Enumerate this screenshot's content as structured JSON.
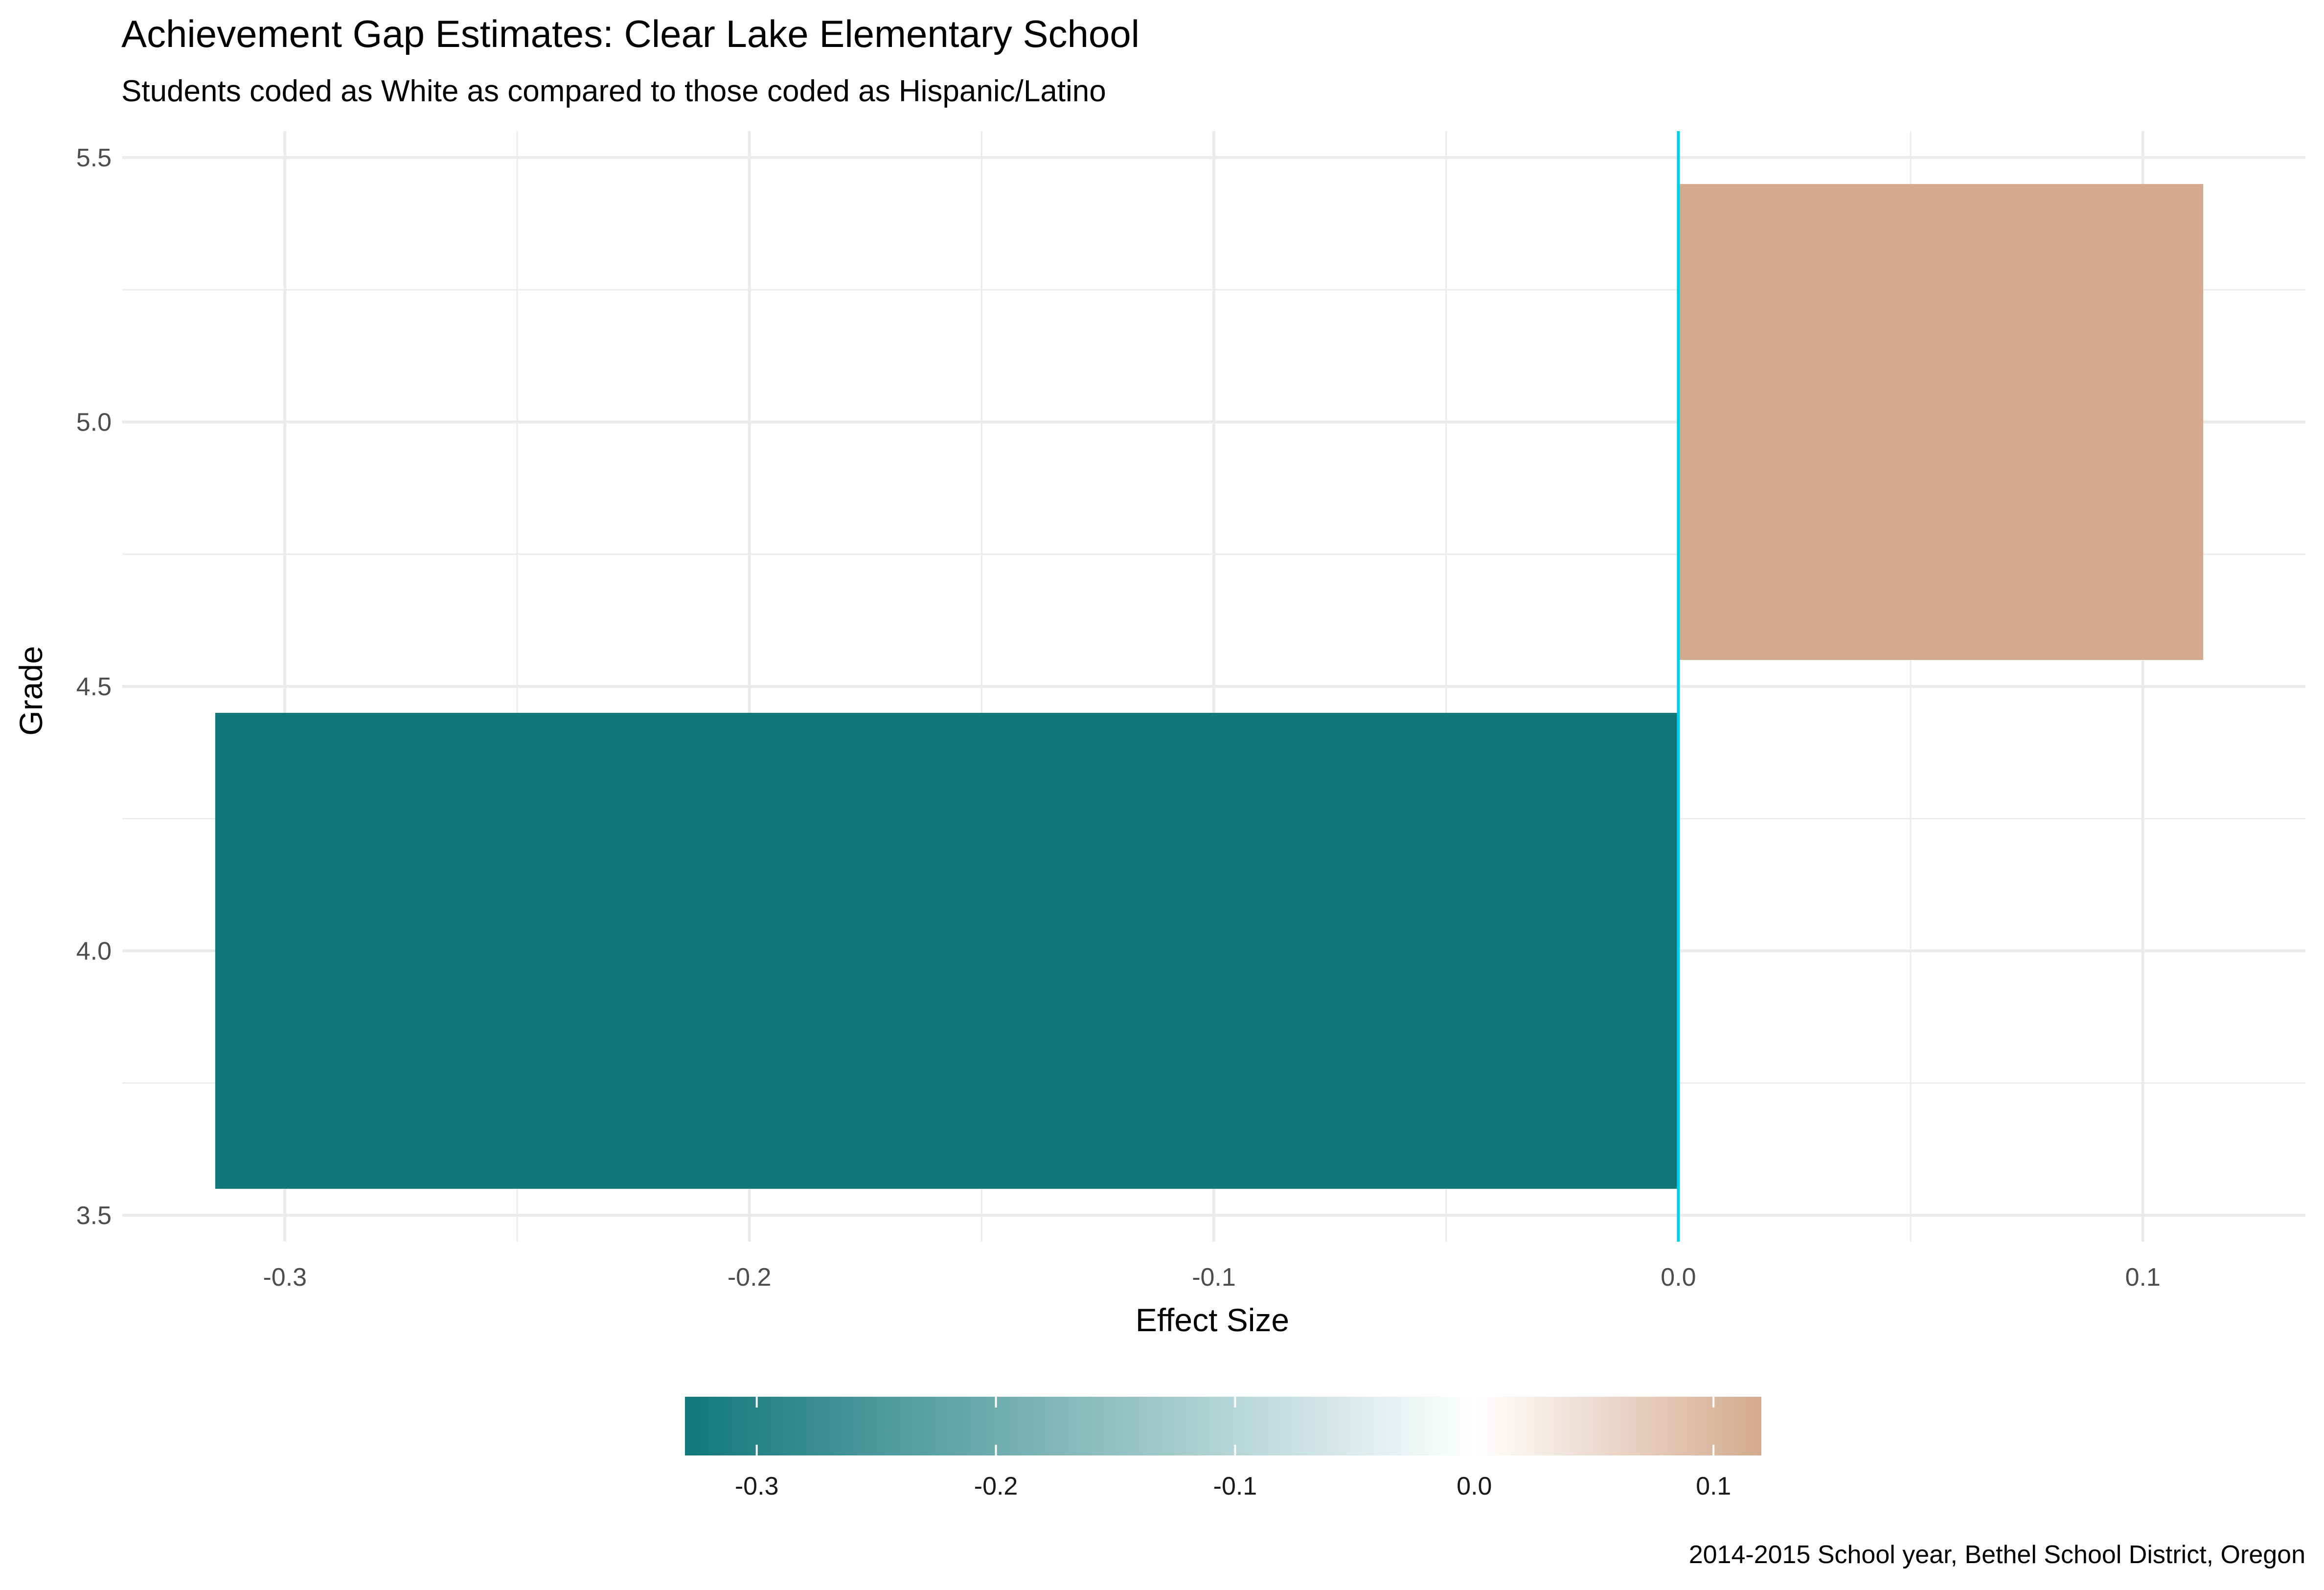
{
  "chart_data": {
    "type": "bar",
    "orientation": "horizontal",
    "title": "Achievement Gap Estimates: Clear Lake Elementary School",
    "subtitle": "Students coded as White as compared to those coded as Hispanic/Latino",
    "xlabel": "Effect Size",
    "ylabel": "Grade",
    "caption": "2014-2015 School year, Bethel School District, Oregon",
    "categories": [
      4,
      5
    ],
    "values": [
      -0.315,
      0.113
    ],
    "bar_colors": [
      "#11777a",
      "#d4aa8e"
    ],
    "xlim": [
      -0.335,
      0.135
    ],
    "ylim": [
      3.45,
      5.55
    ],
    "x_ticks": [
      -0.3,
      -0.2,
      -0.1,
      0.0,
      0.1
    ],
    "x_tick_labels": [
      "-0.3",
      "-0.2",
      "-0.1",
      "0.0",
      "0.1"
    ],
    "y_ticks": [
      3.5,
      4.0,
      4.5,
      5.0,
      5.5
    ],
    "y_tick_labels": [
      "3.5",
      "4.0",
      "4.5",
      "5.0",
      "5.5"
    ],
    "reference_line": {
      "x": 0.0,
      "color": "#00d1e8"
    },
    "grid": true,
    "legend": {
      "type": "colorbar",
      "position": "bottom",
      "range": [
        -0.33,
        0.12
      ],
      "ticks": [
        -0.3,
        -0.2,
        -0.1,
        0.0,
        0.1
      ],
      "tick_labels": [
        "-0.3",
        "-0.2",
        "-0.1",
        "0.0",
        "0.1"
      ],
      "colors": {
        "low": "#11777a",
        "mid": "#ffffff",
        "high": "#d4aa8e"
      }
    }
  }
}
